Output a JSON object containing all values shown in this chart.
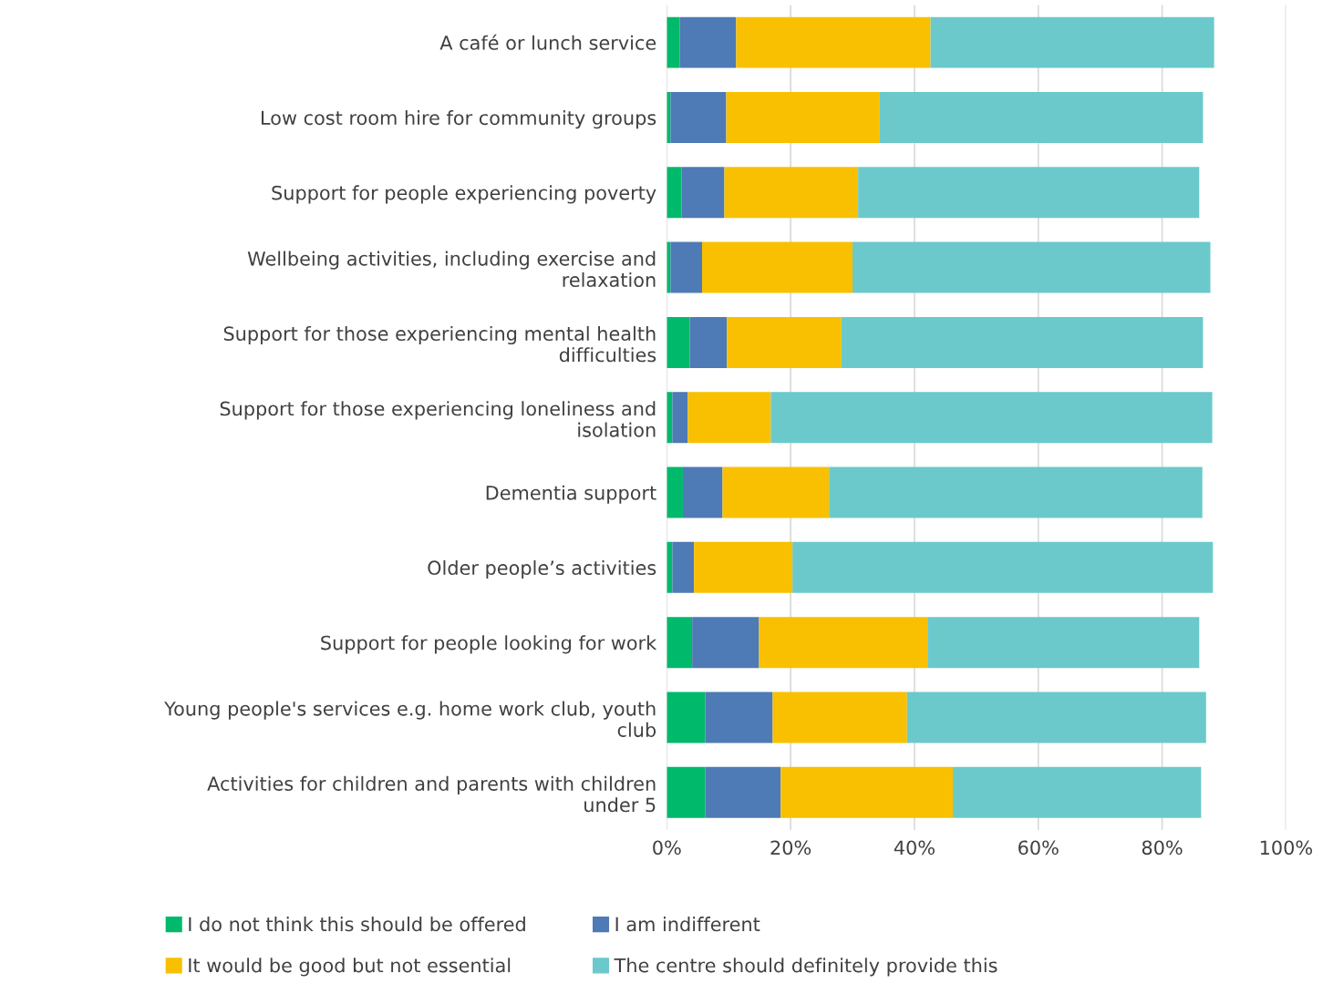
{
  "chart_data": {
    "type": "bar",
    "orientation": "horizontal",
    "stacked": true,
    "categories": [
      "A café or lunch service",
      "Low cost room hire for community groups",
      "Support for people experiencing poverty",
      "Wellbeing activities, including exercise and relaxation",
      "Support for those experiencing mental health difficulties",
      "Support for those experiencing loneliness and isolation",
      "Dementia support",
      "Older people’s activities",
      "Support for people looking for work",
      "Young people's services e.g. home work club, youth club",
      "Activities for children and parents with children under 5"
    ],
    "series": [
      {
        "name": "I do not think this should be offered",
        "color": "#00b96b",
        "values": [
          2.1,
          0.6,
          2.4,
          0.6,
          3.7,
          0.9,
          2.6,
          0.9,
          4.1,
          6.2,
          6.2
        ]
      },
      {
        "name": "I am indifferent",
        "color": "#4e7ab5",
        "values": [
          9.1,
          9.0,
          6.9,
          5.1,
          6.0,
          2.5,
          6.4,
          3.5,
          10.8,
          10.9,
          12.2
        ]
      },
      {
        "name": "It would be good but not essential",
        "color": "#f8c000",
        "values": [
          31.4,
          24.8,
          21.6,
          24.3,
          18.5,
          13.4,
          17.2,
          15.9,
          27.2,
          21.7,
          27.8
        ]
      },
      {
        "name": "The centre should definitely provide this",
        "color": "#6bc9cb",
        "values": [
          45.8,
          52.2,
          55.1,
          57.8,
          58.4,
          71.3,
          60.3,
          67.9,
          43.9,
          48.3,
          40.1
        ]
      }
    ],
    "xlim": [
      0,
      100
    ],
    "xticks": [
      {
        "value": 0,
        "label": "0%"
      },
      {
        "value": 20,
        "label": "20%"
      },
      {
        "value": 40,
        "label": "40%"
      },
      {
        "value": 60,
        "label": "60%"
      },
      {
        "value": 80,
        "label": "80%"
      },
      {
        "value": 100,
        "label": "100%"
      }
    ],
    "grid": "x",
    "legend": "bottom"
  }
}
